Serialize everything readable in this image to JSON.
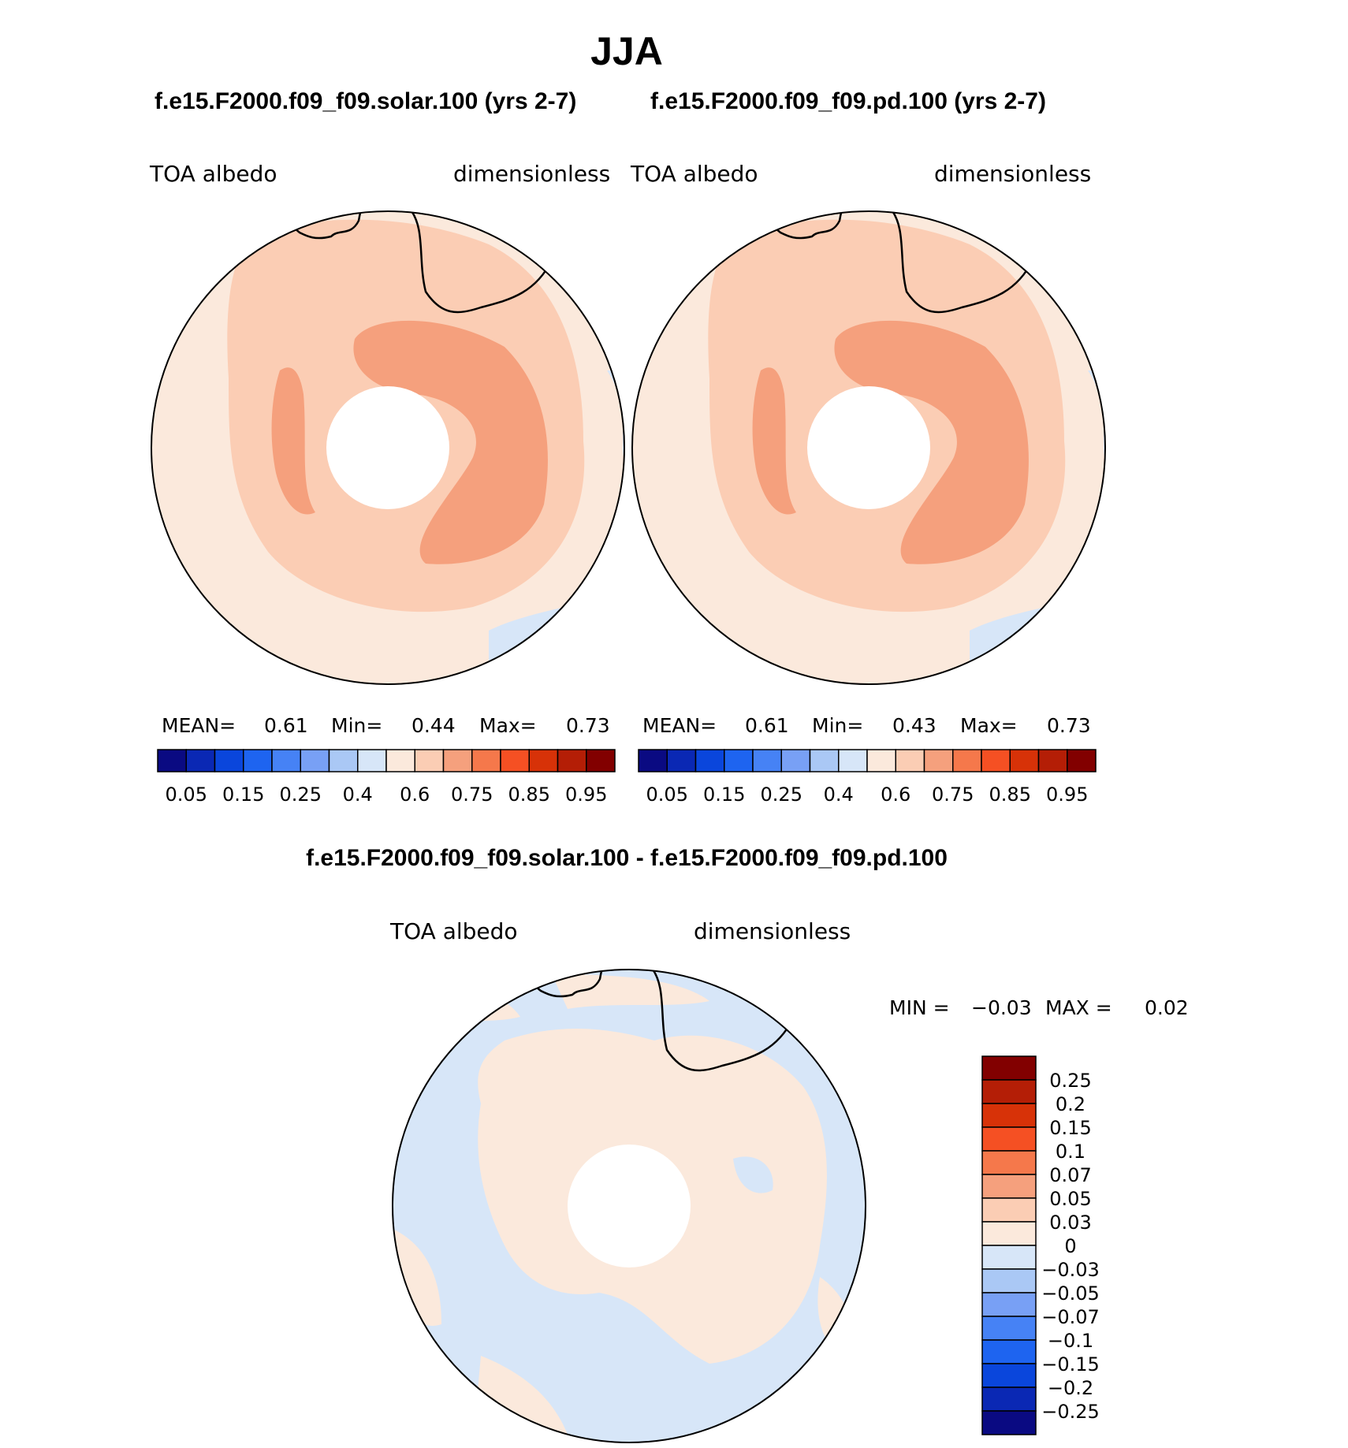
{
  "page": {
    "title": "JJA",
    "left_case": "f.e15.F2000.f09_f09.solar.100 (yrs 2-7)",
    "right_case": "f.e15.F2000.f09_f09.pd.100 (yrs 2-7)",
    "diff_title": "f.e15.F2000.f09_f09.solar.100 - f.e15.F2000.f09_f09.pd.100"
  },
  "panels": {
    "left": {
      "variable": "TOA albedo",
      "units": "dimensionless",
      "mean_label": "MEAN=",
      "mean": "0.61",
      "min_label": "Min=",
      "min": "0.44",
      "max_label": "Max=",
      "max": "0.73"
    },
    "right": {
      "variable": "TOA albedo",
      "units": "dimensionless",
      "mean_label": "MEAN=",
      "mean": "0.61",
      "min_label": "Min=",
      "min": "0.43",
      "max_label": "Max=",
      "max": "0.73"
    },
    "diff": {
      "variable": "TOA albedo",
      "units": "dimensionless",
      "min_label": "MIN =",
      "min": "−0.03",
      "max_label": "MAX =",
      "max": "0.02"
    }
  },
  "colorbar_abs": {
    "colors": [
      "#0a0a82",
      "#0a28b4",
      "#0a46dc",
      "#1e64f0",
      "#4682f5",
      "#78a0f5",
      "#aac8f5",
      "#d7e6f8",
      "#fbe9dc",
      "#fbcdb4",
      "#f5a07d",
      "#f5784b",
      "#f55023",
      "#d73208",
      "#b41e06",
      "#820000"
    ],
    "ticks": [
      "0.05",
      "0.15",
      "0.25",
      "0.4",
      "0.6",
      "0.75",
      "0.85",
      "0.95"
    ]
  },
  "colorbar_diff": {
    "colors": [
      "#820000",
      "#b41e06",
      "#d73208",
      "#f55023",
      "#f5784b",
      "#f5a07d",
      "#fbcdb4",
      "#fbe9dc",
      "#d7e6f8",
      "#aac8f5",
      "#78a0f5",
      "#4682f5",
      "#1e64f0",
      "#0a46dc",
      "#0a28b4",
      "#0a0a82"
    ],
    "ticks": [
      "0.25",
      "0.2",
      "0.15",
      "0.1",
      "0.07",
      "0.05",
      "0.03",
      "0",
      "−0.03",
      "−0.05",
      "−0.07",
      "−0.1",
      "−0.15",
      "−0.2",
      "−0.25"
    ]
  },
  "map_colors": {
    "ocean_far": "#fbe9dc",
    "ocean_near": "#fbcdb4",
    "ice_high": "#f5a07d",
    "low_patch": "#d7e6f8",
    "diff_positive": "#fbe9dc",
    "diff_negative": "#d7e6f8"
  }
}
